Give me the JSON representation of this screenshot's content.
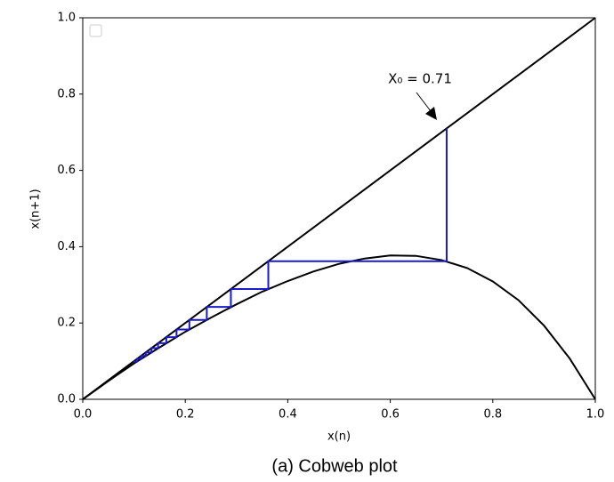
{
  "chart_data": {
    "type": "line",
    "xlabel": "x(n)",
    "ylabel": "x(n+1)",
    "annotation": "X₀ = 0.71",
    "caption": "(a)  Cobweb plot",
    "xlim": [
      0,
      1
    ],
    "ylim": [
      0,
      1
    ],
    "xticks": [
      {
        "value": 0,
        "label": "0.0"
      },
      0.2,
      0.4,
      0.6,
      0.8,
      {
        "value": 1,
        "label": "1.0"
      }
    ],
    "yticks": [
      {
        "value": 0,
        "label": "0.0"
      },
      0.2,
      0.4,
      0.6,
      0.8,
      {
        "value": 1,
        "label": "1.0"
      }
    ],
    "series": [
      {
        "color": "#000000",
        "x": [
          0,
          1
        ],
        "y": [
          0,
          1
        ]
      },
      {
        "color": "#000000",
        "x": [
          0,
          0.05,
          0.1,
          0.15,
          0.2,
          0.25,
          0.3,
          0.35,
          0.4,
          0.45,
          0.5,
          0.55,
          0.6,
          0.65,
          0.7,
          0.75,
          0.8,
          0.85,
          0.9,
          0.95,
          1
        ],
        "y": [
          0,
          0.048,
          0.094,
          0.136,
          0.177,
          0.214,
          0.249,
          0.282,
          0.31,
          0.335,
          0.355,
          0.369,
          0.377,
          0.376,
          0.365,
          0.344,
          0.309,
          0.26,
          0.193,
          0.107,
          0
        ]
      },
      {
        "color": "#1a1acd",
        "x": [
          0.71,
          0.71,
          0.362,
          0.362,
          0.289,
          0.289,
          0.242,
          0.242,
          0.208,
          0.208,
          0.183,
          0.183,
          0.163,
          0.163,
          0.147,
          0.147,
          0.134,
          0.134,
          0.123,
          0.123,
          0.114,
          0.114,
          0.106,
          0.106,
          0.099
        ],
        "y": [
          0.71,
          0.362,
          0.362,
          0.289,
          0.289,
          0.242,
          0.242,
          0.208,
          0.208,
          0.183,
          0.183,
          0.163,
          0.163,
          0.147,
          0.147,
          0.134,
          0.134,
          0.123,
          0.123,
          0.114,
          0.114,
          0.106,
          0.106,
          0.099,
          0.099
        ]
      }
    ]
  }
}
